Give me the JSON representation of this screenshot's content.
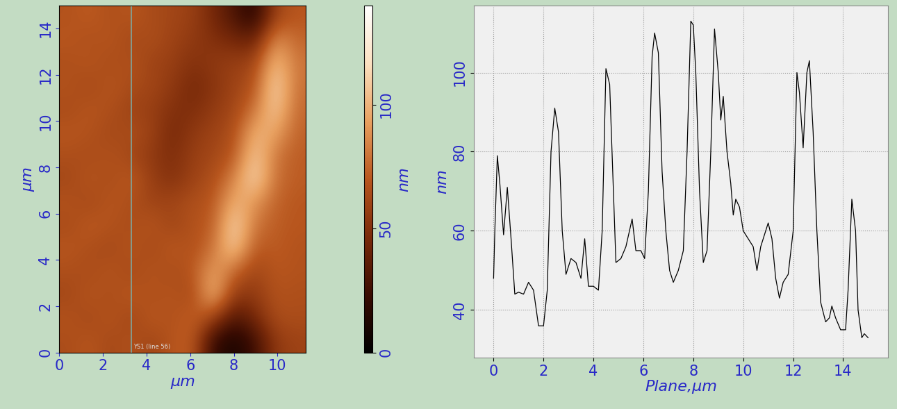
{
  "chart_data": [
    {
      "type": "heatmap",
      "xlabel": "µm",
      "ylabel": "µm",
      "xlim": [
        0,
        11.3
      ],
      "ylim": [
        0,
        15
      ],
      "xticks": [
        0,
        2,
        4,
        6,
        8,
        10
      ],
      "yticks": [
        0,
        2,
        4,
        6,
        8,
        10,
        12,
        14
      ],
      "cells": [
        [
          65,
          70,
          62,
          68,
          60,
          70,
          72,
          20,
          10,
          25,
          55,
          60
        ],
        [
          68,
          62,
          70,
          60,
          72,
          66,
          75,
          60,
          30,
          45,
          65,
          65
        ],
        [
          62,
          70,
          64,
          72,
          65,
          70,
          62,
          105,
          55,
          55,
          68,
          66
        ],
        [
          66,
          64,
          70,
          62,
          70,
          64,
          70,
          95,
          75,
          60,
          70,
          68
        ],
        [
          70,
          66,
          62,
          70,
          62,
          72,
          66,
          80,
          110,
          70,
          72,
          68
        ],
        [
          64,
          72,
          68,
          64,
          70,
          60,
          68,
          72,
          115,
          80,
          72,
          70
        ],
        [
          68,
          62,
          70,
          66,
          60,
          62,
          66,
          70,
          100,
          90,
          74,
          70
        ],
        [
          62,
          70,
          64,
          72,
          58,
          50,
          60,
          66,
          85,
          115,
          78,
          72
        ],
        [
          66,
          64,
          68,
          62,
          55,
          48,
          58,
          62,
          70,
          110,
          80,
          72
        ],
        [
          70,
          68,
          62,
          66,
          60,
          45,
          55,
          60,
          66,
          100,
          95,
          74
        ],
        [
          64,
          70,
          66,
          60,
          58,
          50,
          48,
          56,
          62,
          80,
          110,
          76
        ],
        [
          68,
          62,
          70,
          64,
          62,
          55,
          45,
          52,
          60,
          68,
          115,
          78
        ],
        [
          66,
          70,
          64,
          68,
          60,
          58,
          50,
          55,
          58,
          62,
          105,
          80
        ],
        [
          70,
          66,
          70,
          62,
          66,
          60,
          55,
          50,
          45,
          40,
          90,
          75
        ],
        [
          68,
          72,
          66,
          70,
          64,
          62,
          58,
          45,
          30,
          15,
          60,
          70
        ]
      ],
      "colorbar": {
        "label": "nm",
        "range": [
          0,
          140
        ],
        "ticks": [
          0,
          50,
          100
        ]
      },
      "line_x": 3.3,
      "annotation": "YS1 (line 56)"
    },
    {
      "type": "line",
      "xlabel": "Plane,µm",
      "ylabel": "nm",
      "color": "#000000",
      "xlim": [
        -0.8,
        15.8
      ],
      "ylim": [
        28,
        117
      ],
      "xticks": [
        0,
        2,
        4,
        6,
        8,
        10,
        12,
        14
      ],
      "yticks": [
        40,
        60,
        80,
        100
      ],
      "grid": true,
      "x": [
        0,
        0.05,
        0.15,
        0.25,
        0.4,
        0.55,
        0.7,
        0.85,
        1.0,
        1.2,
        1.4,
        1.6,
        1.8,
        2.0,
        2.15,
        2.3,
        2.45,
        2.6,
        2.75,
        2.9,
        3.1,
        3.3,
        3.5,
        3.65,
        3.8,
        4.0,
        4.2,
        4.35,
        4.5,
        4.65,
        4.8,
        4.9,
        5.1,
        5.3,
        5.55,
        5.7,
        5.9,
        6.05,
        6.2,
        6.35,
        6.45,
        6.6,
        6.75,
        6.9,
        7.05,
        7.2,
        7.4,
        7.6,
        7.75,
        7.9,
        8.0,
        8.1,
        8.25,
        8.4,
        8.55,
        8.7,
        8.85,
        9.0,
        9.1,
        9.2,
        9.35,
        9.5,
        9.6,
        9.7,
        9.85,
        10.0,
        10.2,
        10.4,
        10.55,
        10.7,
        10.9,
        11.0,
        11.15,
        11.3,
        11.45,
        11.6,
        11.8,
        12.0,
        12.15,
        12.25,
        12.4,
        12.55,
        12.65,
        12.8,
        12.95,
        13.1,
        13.3,
        13.45,
        13.55,
        13.7,
        13.9,
        14.1,
        14.2,
        14.35,
        14.5,
        14.6,
        14.75,
        14.85,
        15.0
      ],
      "values": [
        48,
        60,
        79,
        72,
        59,
        71,
        58,
        44,
        44.5,
        44,
        47,
        45,
        36,
        36,
        45,
        80,
        91,
        85,
        60,
        49,
        53,
        52,
        48,
        58,
        46,
        46,
        45,
        60,
        101,
        97,
        70,
        52,
        53,
        56,
        63,
        55,
        55,
        53,
        70,
        104,
        110,
        105,
        75,
        60,
        50,
        47,
        50,
        55,
        80,
        113,
        112,
        100,
        70,
        52,
        55,
        80,
        111,
        100,
        88,
        94,
        80,
        72,
        64,
        68,
        66,
        60,
        58,
        56,
        50,
        56,
        60,
        62,
        58,
        48,
        43,
        47,
        49,
        60,
        100,
        95,
        81,
        100,
        103,
        85,
        60,
        42,
        37,
        38,
        41,
        38,
        35,
        35,
        45,
        68,
        60,
        40,
        33,
        34,
        33
      ]
    }
  ]
}
